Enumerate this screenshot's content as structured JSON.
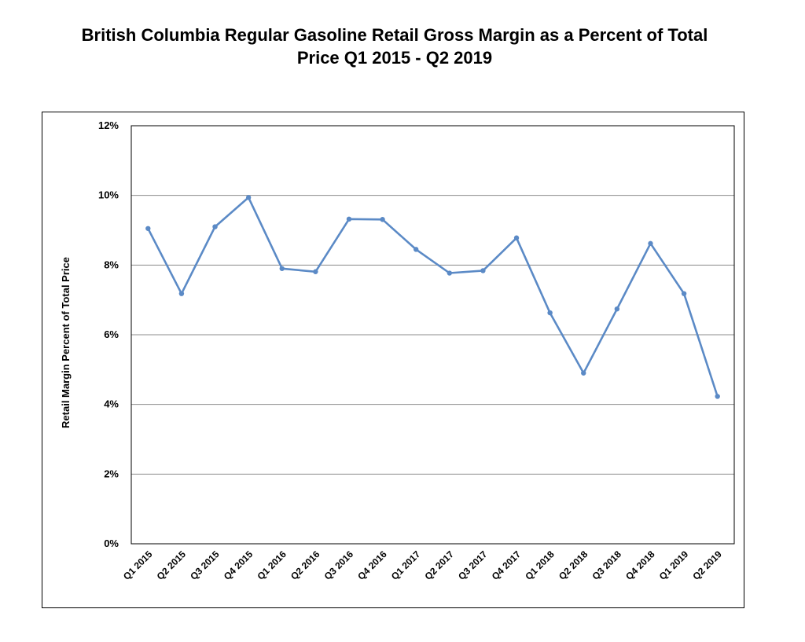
{
  "title_line1": "British Columbia Regular Gasoline Retail Gross Margin as a Percent of Total",
  "title_line2": "Price Q1 2015 - Q2 2019",
  "chart_data": {
    "type": "line",
    "title": "British Columbia Regular Gasoline Retail Gross Margin as a Percent of Total Price Q1 2015 - Q2 2019",
    "xlabel": "",
    "ylabel": "Retail Margin Percent of Total Price",
    "ylim": [
      0,
      12
    ],
    "y_ticks": [
      0,
      2,
      4,
      6,
      8,
      10,
      12
    ],
    "y_tick_labels": [
      "0%",
      "2%",
      "4%",
      "6%",
      "8%",
      "10%",
      "12%"
    ],
    "grid": "horizontal",
    "legend": "none",
    "line_color": "#5b8ac6",
    "categories": [
      "Q1 2015",
      "Q2 2015",
      "Q3 2015",
      "Q4 2015",
      "Q1 2016",
      "Q2 2016",
      "Q3 2016",
      "Q4 2016",
      "Q1 2017",
      "Q2 2017",
      "Q3 2017",
      "Q4 2017",
      "Q1 2018",
      "Q2 2018",
      "Q3 2018",
      "Q4 2018",
      "Q1 2019",
      "Q2 2019"
    ],
    "values": [
      9.05,
      7.18,
      9.1,
      9.94,
      7.9,
      7.81,
      9.32,
      9.31,
      8.45,
      7.77,
      7.84,
      8.78,
      6.63,
      4.9,
      6.74,
      8.62,
      7.18,
      4.23
    ]
  }
}
